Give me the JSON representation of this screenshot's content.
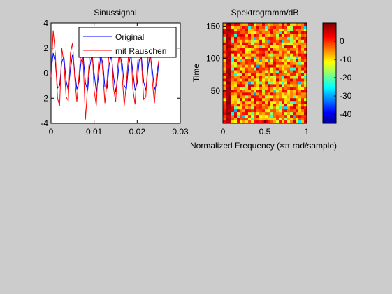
{
  "figure": {
    "background": "#cccccc"
  },
  "chart_data": [
    {
      "type": "line",
      "title": "Sinussignal",
      "xlabel": "",
      "ylabel": "",
      "xlim": [
        0,
        0.03
      ],
      "ylim": [
        -4,
        4
      ],
      "xticks": [
        "0",
        "0.01",
        "0.02",
        "0.03"
      ],
      "yticks": [
        "-4",
        "-2",
        "0",
        "2",
        "4"
      ],
      "legend_position": "top-right",
      "series": [
        {
          "name": "Original",
          "color": "#0000ff",
          "x": [
            0,
            0.0005,
            0.001,
            0.0015,
            0.002,
            0.0025,
            0.003,
            0.0035,
            0.004,
            0.0045,
            0.005,
            0.0055,
            0.006,
            0.0065,
            0.007,
            0.0075,
            0.008,
            0.0085,
            0.009,
            0.0095,
            0.01,
            0.0105,
            0.011,
            0.0115,
            0.012,
            0.0125,
            0.013,
            0.0135,
            0.014,
            0.0145,
            0.015,
            0.0155,
            0.016,
            0.0165,
            0.017,
            0.0175,
            0.018,
            0.0185,
            0.019,
            0.0195,
            0.02,
            0.0205,
            0.021,
            0.0215,
            0.022,
            0.0225,
            0.023,
            0.0235,
            0.024,
            0.0245,
            0.025
          ],
          "y": [
            0,
            1.6,
            0.8,
            -1.2,
            -1.0,
            0.9,
            1.3,
            -0.6,
            -1.4,
            0.3,
            1.5,
            0.2,
            -1.3,
            -0.7,
            1.0,
            1.2,
            -0.8,
            -1.4,
            0.5,
            1.5,
            0.0,
            -1.5,
            -0.4,
            1.3,
            0.9,
            -1.1,
            -1.2,
            0.7,
            1.4,
            -0.2,
            -1.5,
            -0.3,
            1.4,
            0.8,
            -1.0,
            -1.3,
            0.6,
            1.5,
            0.1,
            -1.4,
            -0.8,
            1.1,
            1.2,
            -0.7,
            -1.4,
            0.4,
            1.5,
            0.3,
            -1.3,
            -0.9,
            0.9
          ]
        },
        {
          "name": "mit Rauschen",
          "color": "#ff0000",
          "x": [
            0,
            0.0005,
            0.001,
            0.0015,
            0.002,
            0.0025,
            0.003,
            0.0035,
            0.004,
            0.0045,
            0.005,
            0.0055,
            0.006,
            0.0065,
            0.007,
            0.0075,
            0.008,
            0.0085,
            0.009,
            0.0095,
            0.01,
            0.0105,
            0.011,
            0.0115,
            0.012,
            0.0125,
            0.013,
            0.0135,
            0.014,
            0.0145,
            0.015,
            0.0155,
            0.016,
            0.0165,
            0.017,
            0.0175,
            0.018,
            0.0185,
            0.019,
            0.0195,
            0.02,
            0.0205,
            0.021,
            0.0215,
            0.022,
            0.0225,
            0.023,
            0.0235,
            0.024,
            0.0245,
            0.025
          ],
          "y": [
            -0.3,
            3.4,
            1.5,
            -2.0,
            -2.6,
            2.0,
            0.8,
            -1.9,
            -2.2,
            1.6,
            2.4,
            -0.3,
            -2.3,
            -0.2,
            2.0,
            0.6,
            -3.7,
            -1.0,
            1.7,
            2.3,
            -1.4,
            -2.6,
            0.7,
            2.1,
            0.2,
            -2.4,
            -0.6,
            1.9,
            2.2,
            -1.2,
            -2.3,
            0.6,
            2.0,
            -0.2,
            -2.6,
            -0.8,
            1.5,
            2.2,
            -1.3,
            -2.5,
            0.4,
            2.3,
            0.9,
            -2.1,
            -1.9,
            1.2,
            2.1,
            -0.6,
            -2.4,
            -0.1,
            1.0
          ]
        }
      ]
    },
    {
      "type": "heatmap",
      "title": "Spektrogramm/dB",
      "xlabel": "Normalized Frequency  (×π rad/sample)",
      "ylabel": "Time",
      "xlim": [
        0,
        1
      ],
      "ylim": [
        0,
        155
      ],
      "xticks": [
        "0",
        "0.5",
        "1"
      ],
      "yticks": [
        "50",
        "100",
        "150"
      ],
      "colorbar": {
        "min": -45,
        "max": 10,
        "ticks": [
          "0",
          "-10",
          "-20",
          "-30",
          "-40"
        ]
      },
      "colormap": "jet",
      "description_of_values": "mostly high levels between about -10 and 5 dB with scattered low (cyan/blue) cells; a strong dark-red band near frequency 0.05"
    }
  ]
}
